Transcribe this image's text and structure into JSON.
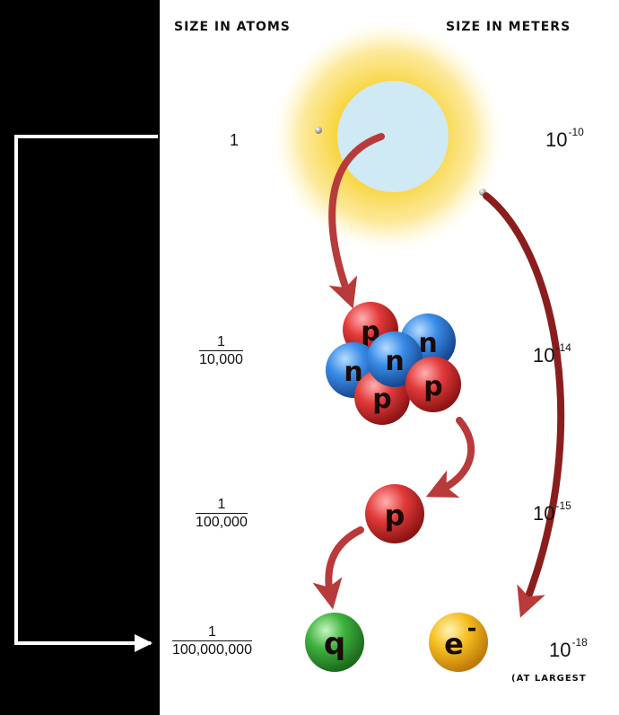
{
  "headers": {
    "atoms": "SIZE IN ATOMS",
    "meters": "SIZE IN METERS"
  },
  "rows": [
    {
      "atoms_label": "1",
      "meters_exp": "-10"
    },
    {
      "atoms_num": "1",
      "atoms_den": "10,000",
      "meters_exp": "-14"
    },
    {
      "atoms_num": "1",
      "atoms_den": "100,000",
      "meters_exp": "-15"
    },
    {
      "atoms_num": "1",
      "atoms_den": "100,000,000",
      "meters_exp": "-18",
      "meters_note": "(AT LARGEST"
    }
  ],
  "base": "10",
  "particles": {
    "proton": "p",
    "neutron": "n",
    "quark": "q",
    "electron": "e",
    "electron_sup": "-"
  },
  "colors": {
    "proton": "#d42a2a",
    "neutron": "#2a7fe0",
    "quark": "#3aa83a",
    "electron": "#f0b418",
    "arrow": "#b83a3a",
    "glow": "#f8d540",
    "atom_core": "#cfe9f5"
  }
}
